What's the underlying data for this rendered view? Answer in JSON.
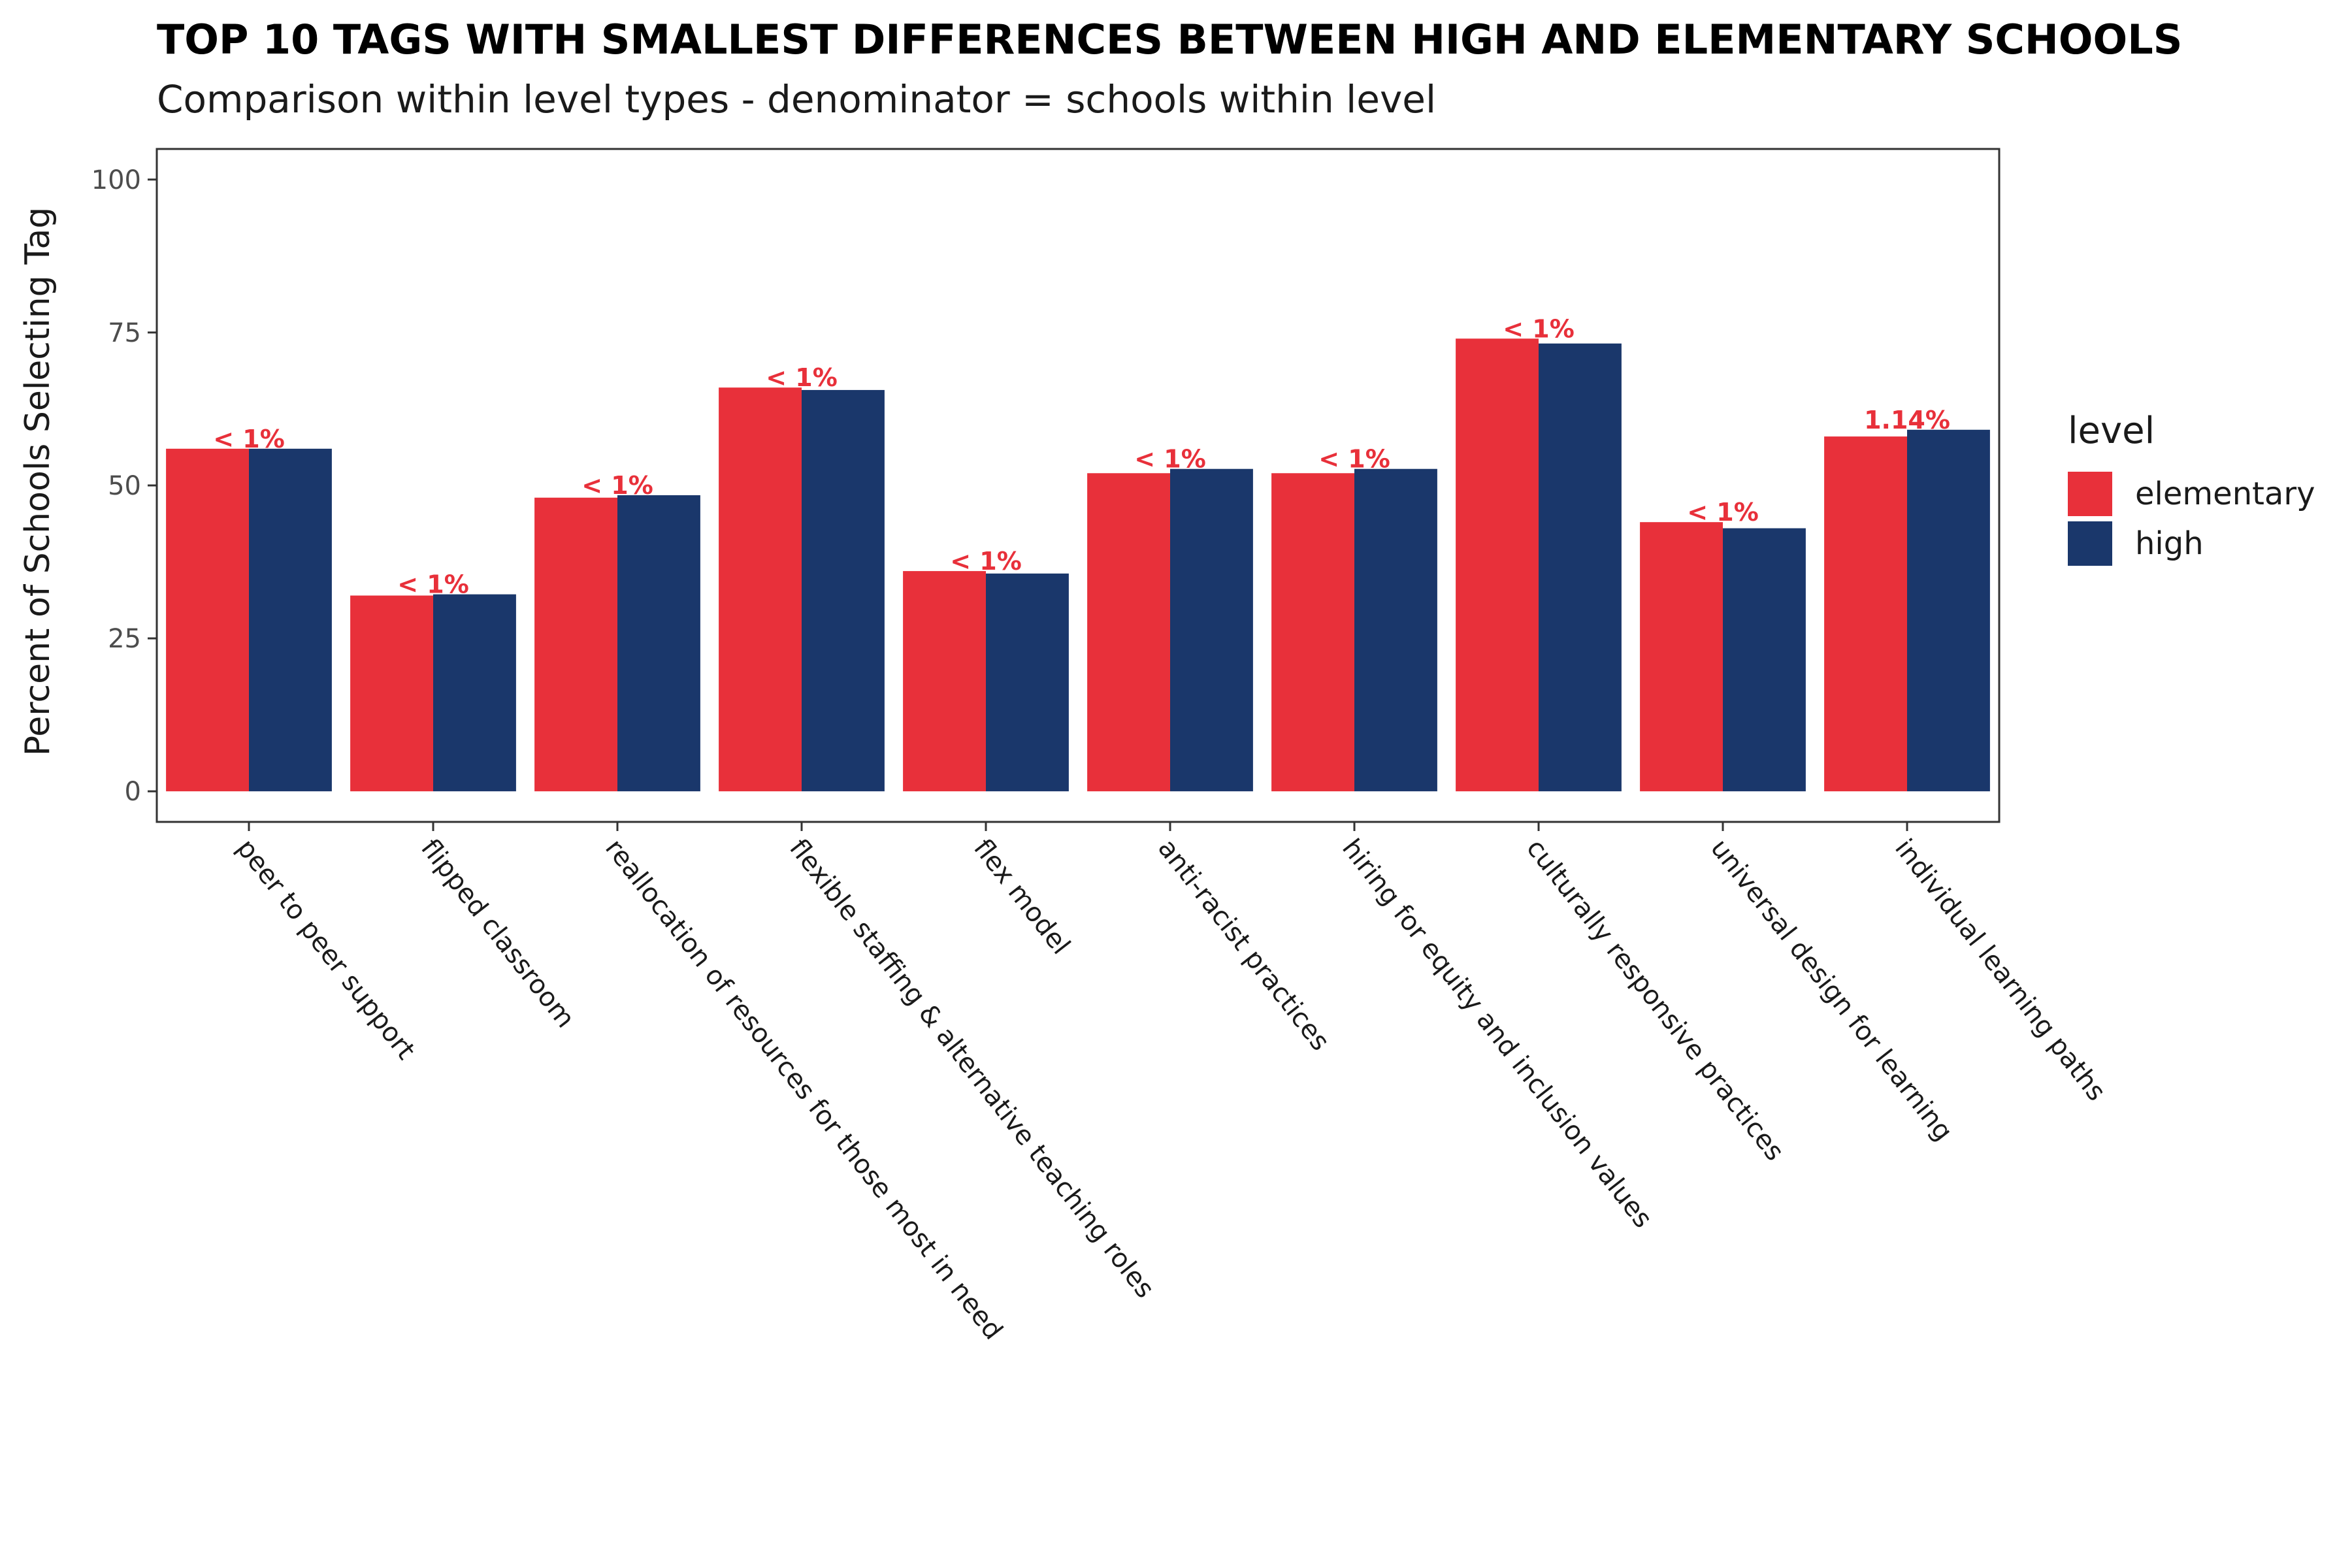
{
  "chart_data": {
    "type": "bar",
    "title": "TOP 10 TAGS WITH SMALLEST DIFFERENCES BETWEEN HIGH AND ELEMENTARY SCHOOLS",
    "subtitle": "Comparison within level types - denominator = schools within level",
    "xlabel": "",
    "ylabel": "Percent of Schools Selecting Tag",
    "ylim": [
      -5,
      105
    ],
    "yticks": [
      0,
      25,
      50,
      75,
      100
    ],
    "categories": [
      "peer to peer support",
      "flipped classroom",
      "reallocation of resources for those most in need",
      "flexible staffing & alternative teaching roles",
      "flex model",
      "anti-racist practices",
      "hiring for equity and inclusion values",
      "culturally responsive practices",
      "universal design for learning",
      "individual learning paths"
    ],
    "series": [
      {
        "name": "elementary",
        "color": "#e8303a",
        "values": [
          56,
          32,
          48,
          66,
          36,
          52,
          52,
          74,
          44,
          58
        ]
      },
      {
        "name": "high",
        "color": "#1a376b",
        "values": [
          56,
          32.2,
          48.4,
          65.6,
          35.6,
          52.7,
          52.7,
          73.2,
          43,
          59.1
        ]
      }
    ],
    "difference_labels": [
      "< 1%",
      "< 1%",
      "< 1%",
      "< 1%",
      "< 1%",
      "< 1%",
      "< 1%",
      "< 1%",
      "< 1%",
      "1.14%"
    ],
    "difference_label_color": "#e8303a",
    "legend": {
      "title": "level",
      "placement": "right"
    },
    "grid": false
  }
}
